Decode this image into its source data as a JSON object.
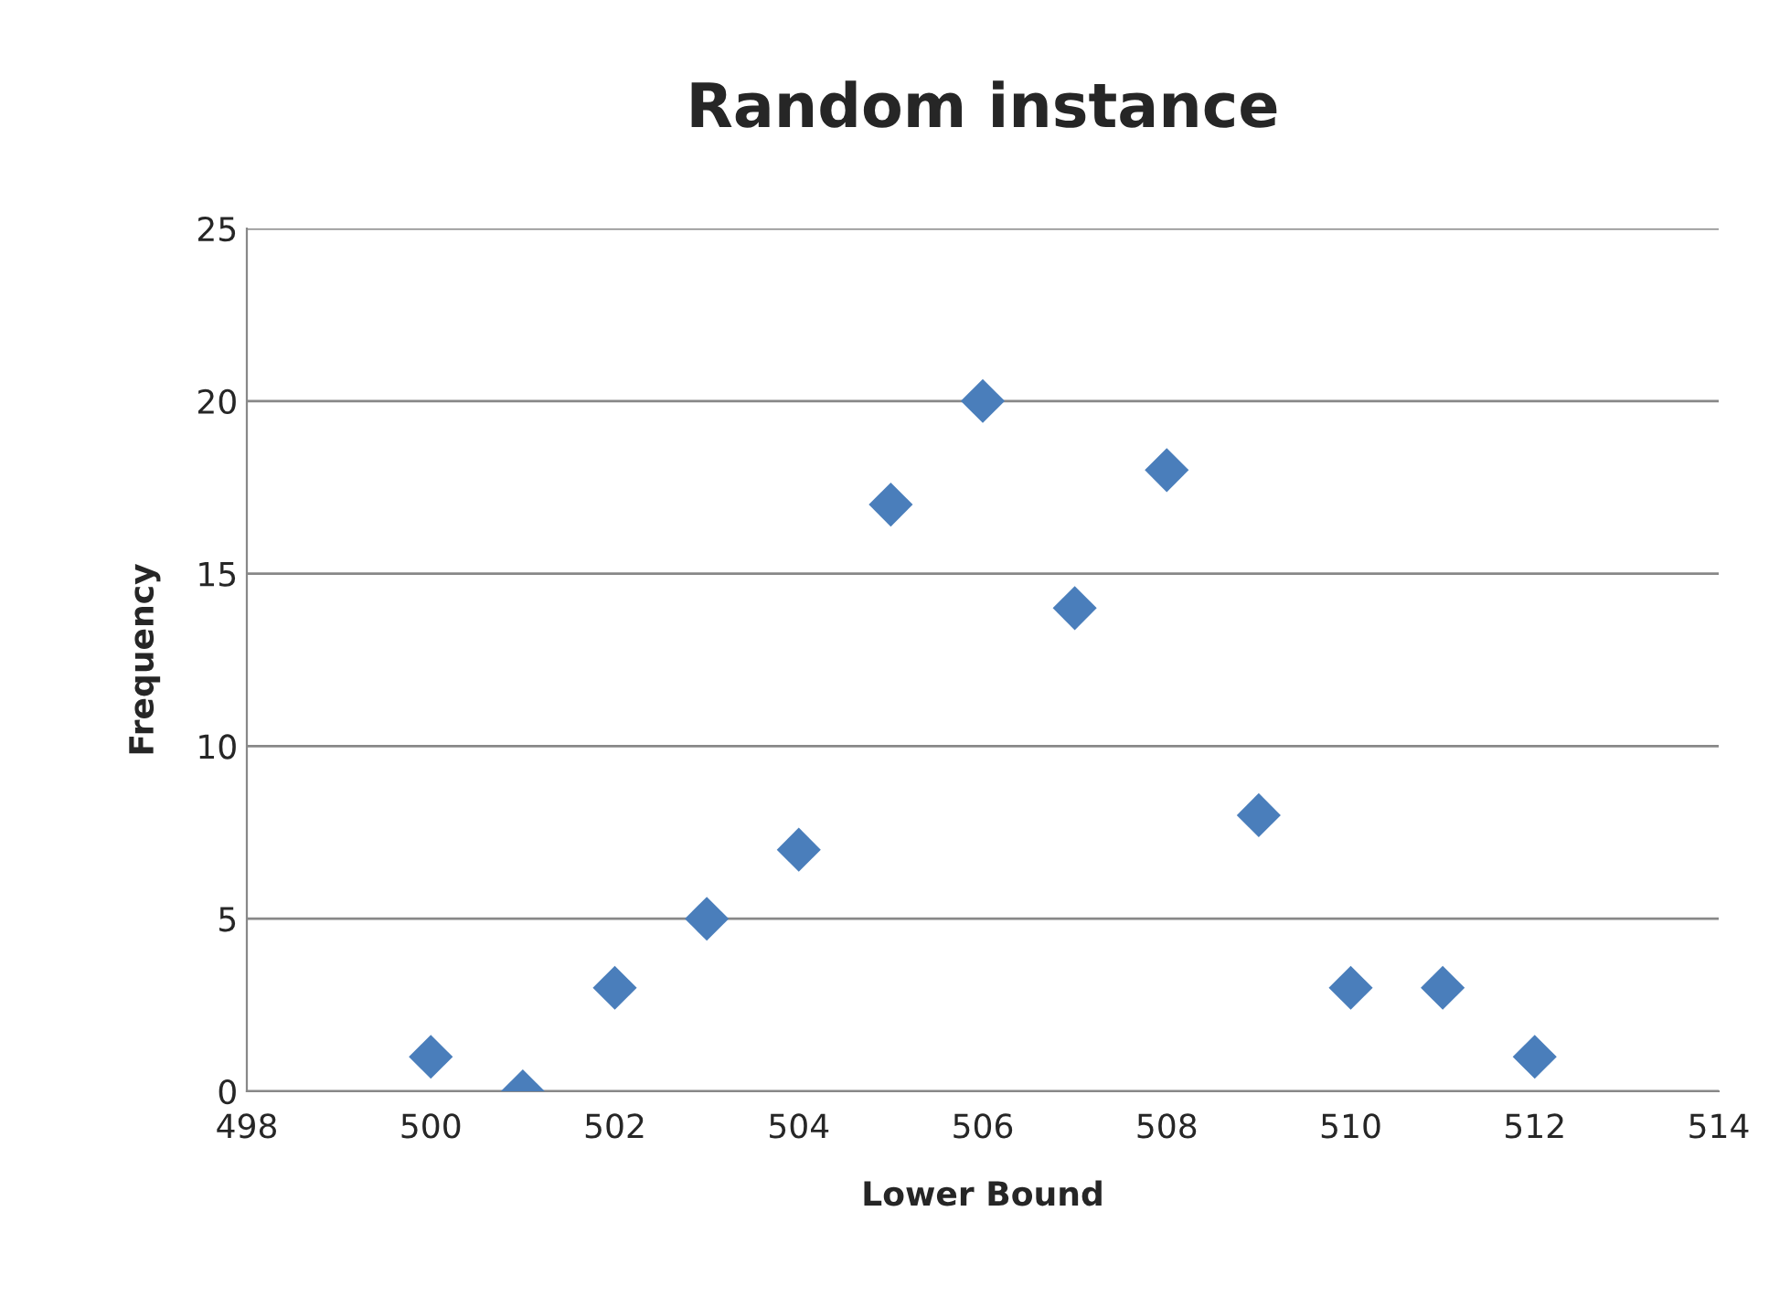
{
  "chart_data": {
    "type": "scatter",
    "title": "Random instance",
    "xlabel": "Lower Bound",
    "ylabel": "Frequency",
    "x": [
      500,
      501,
      502,
      503,
      504,
      505,
      506,
      507,
      508,
      509,
      510,
      511,
      512
    ],
    "series": [
      {
        "color": "#4a7ebb",
        "values": [
          1,
          0,
          3,
          5,
          7,
          17,
          20,
          14,
          18,
          8,
          3,
          3,
          1
        ]
      }
    ],
    "xlim": [
      498,
      514
    ],
    "xticks": [
      498,
      500,
      502,
      504,
      506,
      508,
      510,
      512,
      514
    ],
    "ylim": [
      0,
      25
    ],
    "yticks": [
      0,
      5,
      10,
      15,
      20,
      25
    ],
    "grid": "y",
    "marker": "diamond"
  }
}
